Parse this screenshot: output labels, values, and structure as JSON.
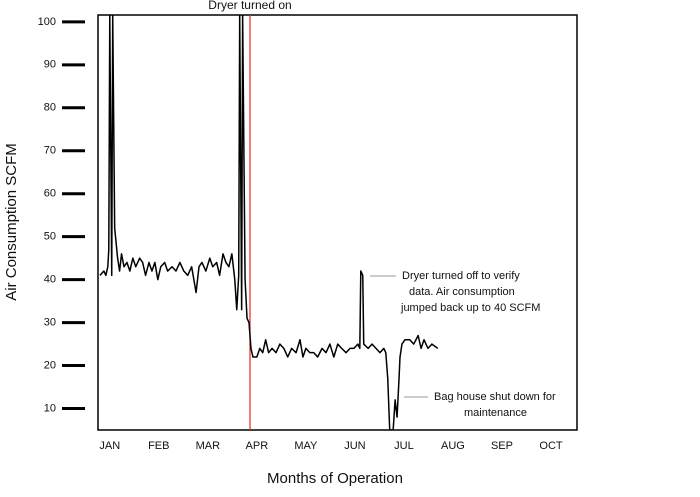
{
  "chart_data": {
    "type": "line",
    "y_label": "Air Consumption SCFM",
    "x_label": "Months of Operation",
    "color": "#000000",
    "x": [
      -0.2,
      -0.12,
      -0.08,
      -0.04,
      -0.02,
      0.0,
      0.04,
      0.06,
      0.1,
      0.16,
      0.2,
      0.24,
      0.29,
      0.35,
      0.41,
      0.47,
      0.53,
      0.61,
      0.67,
      0.73,
      0.8,
      0.86,
      0.92,
      0.98,
      1.04,
      1.12,
      1.18,
      1.27,
      1.35,
      1.43,
      1.51,
      1.59,
      1.67,
      1.76,
      1.82,
      1.88,
      1.96,
      2.04,
      2.1,
      2.18,
      2.24,
      2.31,
      2.37,
      2.43,
      2.49,
      2.55,
      2.59,
      2.63,
      2.65,
      2.69,
      2.71,
      2.76,
      2.8,
      2.84,
      2.88,
      2.92,
      3.0,
      3.06,
      3.12,
      3.18,
      3.24,
      3.31,
      3.39,
      3.47,
      3.55,
      3.63,
      3.71,
      3.8,
      3.88,
      3.94,
      4.0,
      4.08,
      4.16,
      4.24,
      4.33,
      4.41,
      4.49,
      4.57,
      4.65,
      4.73,
      4.82,
      4.9,
      4.98,
      5.06,
      5.1,
      5.12,
      5.16,
      5.18,
      5.27,
      5.35,
      5.43,
      5.51,
      5.59,
      5.63,
      5.67,
      5.71,
      5.78,
      5.82,
      5.86,
      5.9,
      5.92,
      5.96,
      6.02,
      6.12,
      6.2,
      6.29,
      6.35,
      6.41,
      6.49,
      6.57,
      6.69
    ],
    "values": [
      41,
      42,
      41,
      43,
      47,
      101.6,
      41,
      101.6,
      52,
      45,
      42,
      46,
      43,
      44,
      42,
      45,
      43,
      45,
      44,
      41,
      44,
      42,
      44,
      40,
      43,
      44,
      42,
      43,
      42,
      44,
      42,
      41,
      43,
      37,
      43,
      44,
      42,
      45,
      43,
      44,
      41,
      46,
      44,
      43,
      46,
      40,
      33,
      41,
      101.6,
      33,
      101.6,
      40,
      31,
      30,
      24,
      22,
      22,
      24,
      23,
      26,
      23,
      24,
      23,
      25,
      24,
      22,
      24,
      23,
      26,
      22,
      24,
      23,
      23,
      22,
      24,
      23,
      25,
      22,
      25,
      24,
      23,
      24,
      24,
      25,
      24,
      42,
      41,
      25,
      24,
      25,
      24,
      23,
      24,
      23,
      17,
      5,
      5,
      12,
      8,
      17,
      22,
      25,
      26,
      26,
      25,
      27,
      24,
      26,
      24,
      25,
      24
    ],
    "xlim": [
      -0.24,
      9.53
    ],
    "xticks": [
      {
        "value": 0,
        "label": "JAN"
      },
      {
        "value": 1,
        "label": "FEB"
      },
      {
        "value": 2,
        "label": "MAR"
      },
      {
        "value": 3,
        "label": "APR"
      },
      {
        "value": 4,
        "label": "MAY"
      },
      {
        "value": 5,
        "label": "JUN"
      },
      {
        "value": 6,
        "label": "JUL"
      },
      {
        "value": 7,
        "label": "AUG"
      },
      {
        "value": 8,
        "label": "SEP"
      },
      {
        "value": 9,
        "label": "OCT"
      }
    ],
    "ylim": [
      5,
      101.6
    ],
    "yticks": [
      10,
      20,
      30,
      40,
      50,
      60,
      70,
      80,
      90,
      100
    ],
    "event": {
      "text": "Dryer turned on",
      "x": 2.86,
      "color": "#e8231f"
    },
    "annotations": [
      {
        "lines": [
          "Dryer turned off to verify",
          "data. Air consumption",
          "jumped back up to 40 SCFM"
        ]
      },
      {
        "lines": [
          "Bag house shut down for",
          "maintenance"
        ]
      }
    ]
  }
}
